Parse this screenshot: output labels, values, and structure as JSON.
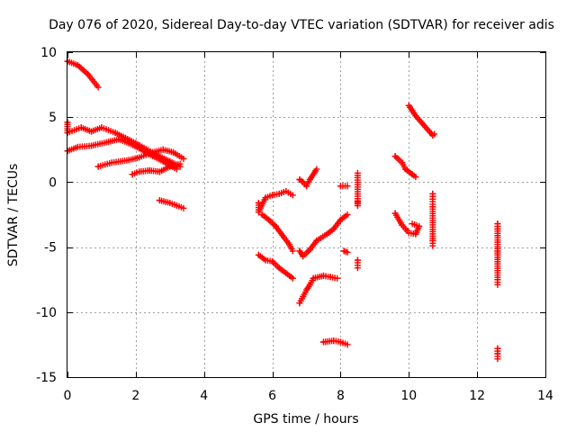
{
  "chart_data": {
    "type": "scatter",
    "title": "Day 076 of 2020, Sidereal Day-to-day VTEC variation (SDTVAR) for receiver adis",
    "xlabel": "GPS time / hours",
    "ylabel": "SDTVAR / TECUs",
    "xlim": [
      0,
      14
    ],
    "ylim": [
      -15,
      10
    ],
    "xticks": [
      0,
      2,
      4,
      6,
      8,
      10,
      12,
      14
    ],
    "yticks": [
      -15,
      -10,
      -5,
      0,
      5,
      10
    ],
    "grid": true,
    "marker": "+",
    "color": "#ff0000",
    "segments": [
      [
        [
          0.0,
          9.3
        ],
        [
          0.3,
          9.0
        ],
        [
          0.6,
          8.3
        ],
        [
          0.9,
          7.3
        ]
      ],
      [
        [
          0.0,
          4.6
        ],
        [
          0.0,
          3.8
        ],
        [
          0.4,
          4.2
        ],
        [
          0.7,
          3.9
        ],
        [
          1.0,
          4.2
        ],
        [
          1.4,
          3.8
        ],
        [
          2.0,
          3.0
        ],
        [
          2.6,
          2.1
        ],
        [
          3.0,
          1.6
        ],
        [
          3.3,
          1.2
        ]
      ],
      [
        [
          0.0,
          2.4
        ],
        [
          0.3,
          2.7
        ],
        [
          0.7,
          2.8
        ],
        [
          1.2,
          3.1
        ],
        [
          1.5,
          3.3
        ],
        [
          1.8,
          3.0
        ],
        [
          2.1,
          2.6
        ],
        [
          2.5,
          2.0
        ],
        [
          2.8,
          1.6
        ],
        [
          3.2,
          1.0
        ]
      ],
      [
        [
          0.9,
          1.2
        ],
        [
          1.3,
          1.5
        ],
        [
          1.8,
          1.7
        ],
        [
          2.1,
          1.9
        ],
        [
          2.5,
          2.3
        ],
        [
          2.8,
          2.5
        ],
        [
          3.1,
          2.3
        ],
        [
          3.4,
          1.8
        ]
      ],
      [
        [
          1.9,
          0.6
        ],
        [
          2.1,
          0.8
        ],
        [
          2.4,
          0.9
        ],
        [
          2.7,
          0.8
        ],
        [
          3.0,
          1.2
        ],
        [
          3.3,
          1.4
        ]
      ],
      [
        [
          2.7,
          -1.4
        ],
        [
          3.0,
          -1.6
        ],
        [
          3.2,
          -1.8
        ],
        [
          3.4,
          -2.0
        ]
      ],
      [
        [
          5.6,
          -1.6
        ],
        [
          5.6,
          -2.3
        ],
        [
          5.8,
          -1.2
        ],
        [
          6.0,
          -1.0
        ],
        [
          6.2,
          -0.9
        ],
        [
          6.4,
          -0.7
        ],
        [
          6.6,
          -1.0
        ]
      ],
      [
        [
          5.7,
          -2.5
        ],
        [
          5.9,
          -2.9
        ],
        [
          6.1,
          -3.4
        ],
        [
          6.3,
          -4.1
        ],
        [
          6.5,
          -4.8
        ],
        [
          6.6,
          -5.3
        ]
      ],
      [
        [
          5.6,
          -5.6
        ],
        [
          5.8,
          -6.0
        ],
        [
          6.0,
          -6.1
        ],
        [
          6.2,
          -6.6
        ],
        [
          6.4,
          -7.0
        ],
        [
          6.6,
          -7.4
        ]
      ],
      [
        [
          6.8,
          0.2
        ],
        [
          6.9,
          0.0
        ],
        [
          7.0,
          -0.3
        ],
        [
          7.1,
          0.2
        ],
        [
          7.2,
          0.6
        ],
        [
          7.3,
          1.0
        ]
      ],
      [
        [
          6.8,
          -5.3
        ],
        [
          6.9,
          -5.7
        ],
        [
          7.1,
          -5.2
        ],
        [
          7.3,
          -4.5
        ],
        [
          7.6,
          -4.0
        ],
        [
          7.8,
          -3.6
        ],
        [
          8.0,
          -2.9
        ],
        [
          8.2,
          -2.5
        ]
      ],
      [
        [
          6.8,
          -9.3
        ],
        [
          6.9,
          -8.8
        ],
        [
          7.0,
          -8.3
        ],
        [
          7.1,
          -7.9
        ],
        [
          7.2,
          -7.4
        ],
        [
          7.5,
          -7.2
        ],
        [
          7.7,
          -7.3
        ],
        [
          7.9,
          -7.4
        ]
      ],
      [
        [
          7.5,
          -12.3
        ],
        [
          7.8,
          -12.2
        ],
        [
          8.0,
          -12.3
        ],
        [
          8.2,
          -12.5
        ]
      ],
      [
        [
          8.0,
          -0.3
        ],
        [
          8.2,
          -0.3
        ],
        [
          8.1,
          -5.3
        ],
        [
          8.2,
          -5.4
        ]
      ],
      [
        [
          8.5,
          -1.5
        ],
        [
          8.5,
          -1.8
        ],
        [
          8.5,
          0.7
        ],
        [
          8.5,
          -6.0
        ],
        [
          8.5,
          -6.6
        ]
      ],
      [
        [
          9.6,
          2.0
        ],
        [
          9.8,
          1.5
        ],
        [
          9.9,
          1.0
        ],
        [
          10.1,
          0.6
        ],
        [
          10.2,
          0.4
        ]
      ],
      [
        [
          9.6,
          -2.4
        ],
        [
          9.8,
          -3.3
        ],
        [
          9.9,
          -3.6
        ],
        [
          10.0,
          -3.9
        ],
        [
          10.2,
          -4.0
        ],
        [
          10.3,
          -3.4
        ],
        [
          10.1,
          -3.2
        ]
      ],
      [
        [
          10.0,
          5.9
        ],
        [
          10.1,
          5.5
        ],
        [
          10.2,
          5.1
        ],
        [
          10.7,
          3.6
        ],
        [
          10.75,
          3.7
        ]
      ],
      [
        [
          10.7,
          -0.9
        ],
        [
          10.7,
          -1.3
        ],
        [
          10.7,
          -1.9
        ],
        [
          10.7,
          -4.5
        ],
        [
          10.7,
          -4.9
        ]
      ],
      [
        [
          12.6,
          -3.2
        ],
        [
          12.6,
          -3.6
        ],
        [
          12.6,
          -5.3
        ],
        [
          12.6,
          -5.6
        ],
        [
          12.6,
          -7.5
        ],
        [
          12.6,
          -7.9
        ],
        [
          12.6,
          -12.8
        ],
        [
          12.6,
          -13.2
        ],
        [
          12.6,
          -13.6
        ]
      ]
    ]
  }
}
